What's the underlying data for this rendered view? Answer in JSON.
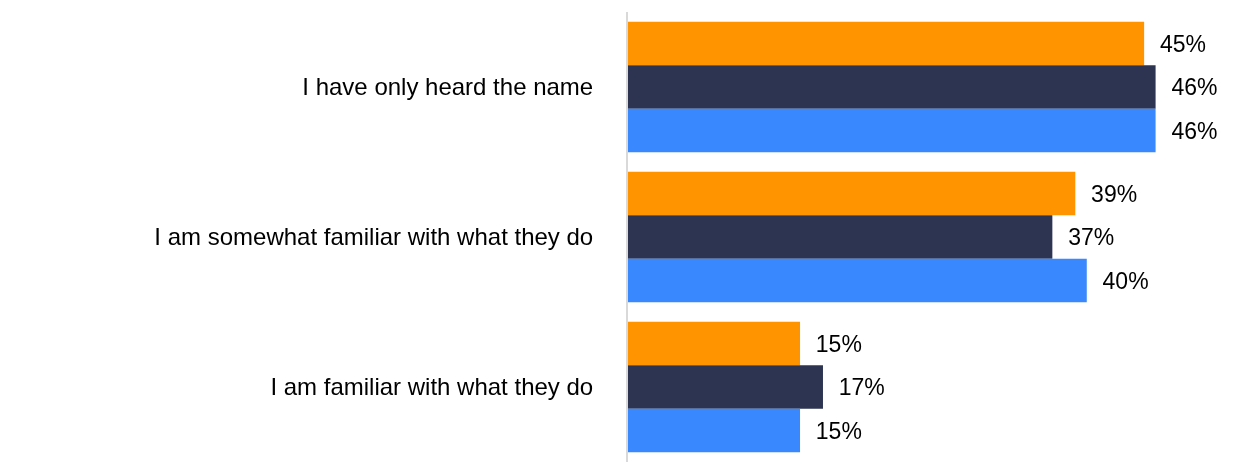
{
  "chart_data": {
    "type": "bar",
    "orientation": "horizontal",
    "categories": [
      "I have only heard the name",
      "I am somewhat familiar with what they do",
      "I am familiar with what they do"
    ],
    "series": [
      {
        "color": "#ff9300",
        "values": [
          45,
          39,
          15
        ],
        "value_labels": [
          "45%",
          "39%",
          "15%"
        ]
      },
      {
        "color": "#2d3452",
        "values": [
          46,
          37,
          17
        ],
        "value_labels": [
          "46%",
          "37%",
          "17%"
        ]
      },
      {
        "color": "#3a88fe",
        "values": [
          46,
          40,
          15
        ],
        "value_labels": [
          "46%",
          "40%",
          "15%"
        ]
      }
    ],
    "grid": false
  }
}
